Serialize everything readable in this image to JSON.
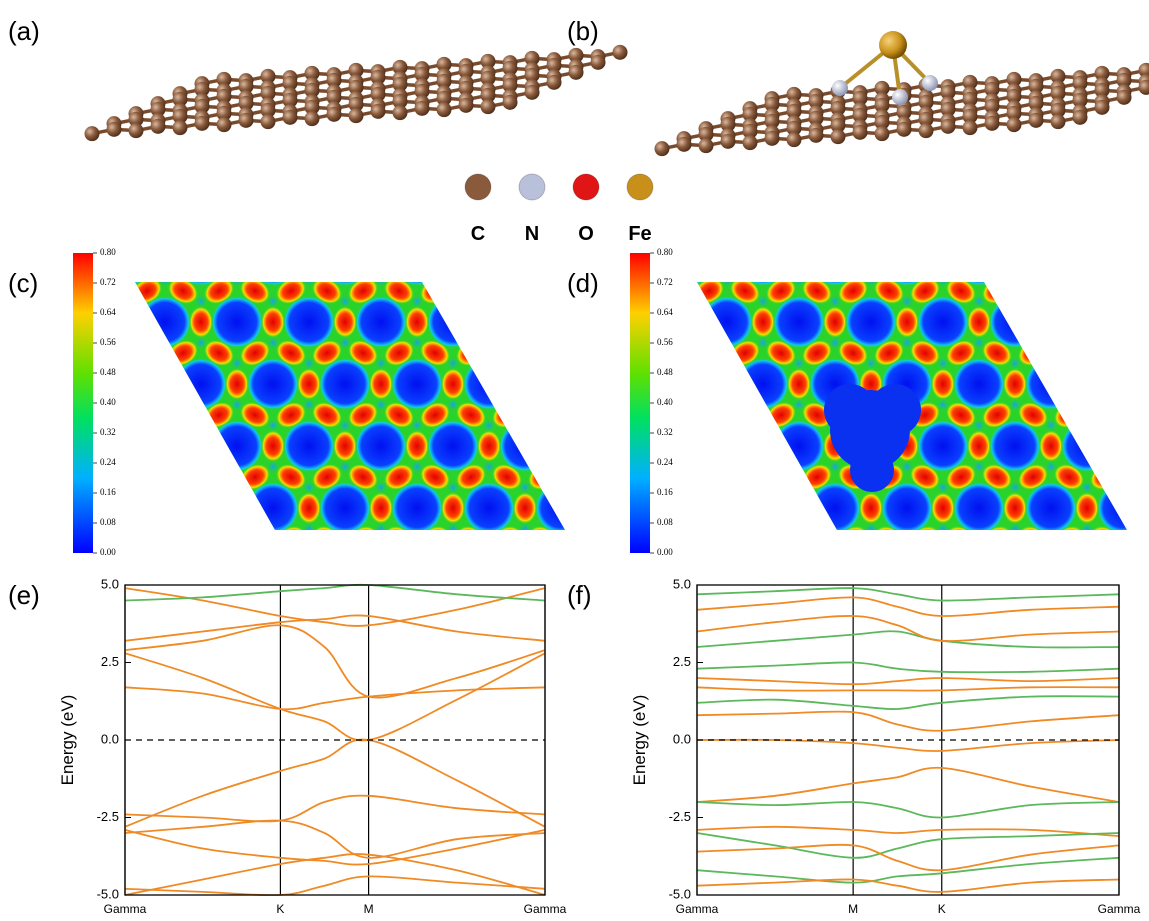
{
  "panel_labels": [
    "(a)",
    "(b)",
    "(c)",
    "(d)",
    "(e)",
    "(f)"
  ],
  "legend": {
    "items": [
      {
        "label": "C",
        "color": "#8a5a3c"
      },
      {
        "label": "N",
        "color": "#b9c0d9"
      },
      {
        "label": "O",
        "color": "#e01515"
      },
      {
        "label": "Fe",
        "color": "#c8901a"
      }
    ]
  },
  "colorbars": [
    {
      "lim": [
        0,
        0.8
      ],
      "ticks": [
        {
          "value": 0,
          "label": "0.00"
        },
        0.08,
        0.16,
        0.24,
        0.32,
        {
          "value": 0.4,
          "label": "0.40"
        },
        0.48,
        0.56,
        0.64,
        0.72,
        {
          "value": 0.8,
          "label": "0.80"
        }
      ]
    },
    {
      "lim": [
        0,
        0.8
      ],
      "ticks": [
        {
          "value": 0,
          "label": "0.00"
        },
        0.08,
        0.16,
        0.24,
        0.32,
        {
          "value": 0.4,
          "label": "0.40"
        },
        0.48,
        0.56,
        0.64,
        0.72,
        {
          "value": 0.8,
          "label": "0.80"
        }
      ]
    }
  ],
  "chart_data": [
    {
      "type": "line",
      "ylabel": "Energy (eV)",
      "xlim": [
        0,
        1
      ],
      "xticks": [
        {
          "value": 0,
          "label": "Gamma"
        },
        {
          "value": 0.37,
          "label": "K"
        },
        {
          "value": 0.58,
          "label": "M"
        },
        {
          "value": 1,
          "label": "Gamma"
        }
      ],
      "ylim": [
        -5,
        5
      ],
      "yticks": [
        {
          "value": -5,
          "label": "-5.0"
        },
        -2.5,
        {
          "value": 0,
          "label": "0.0"
        },
        2.5,
        {
          "value": 5,
          "label": "5.0"
        }
      ],
      "hline": 0,
      "xgrid": true,
      "x": [
        0,
        0.185,
        0.37,
        0.475,
        0.58,
        0.79,
        1
      ],
      "series": [
        {
          "color": "#f08a24",
          "values": [
            -2.8,
            -1.8,
            -1.0,
            -0.6,
            0,
            -1.3,
            -2.8
          ]
        },
        {
          "color": "#f08a24",
          "values": [
            2.8,
            2.0,
            1.0,
            0.6,
            0,
            1.3,
            2.8
          ]
        },
        {
          "color": "#f08a24",
          "values": [
            1.7,
            1.5,
            1.0,
            1.2,
            1.4,
            1.6,
            1.7
          ]
        },
        {
          "color": "#f08a24",
          "values": [
            -2.4,
            -2.5,
            -2.6,
            -2.0,
            -1.8,
            -2.2,
            -2.4
          ]
        },
        {
          "color": "#f08a24",
          "values": [
            -2.9,
            -3.5,
            -3.8,
            -3.9,
            -4.0,
            -3.5,
            -2.9
          ]
        },
        {
          "color": "#f08a24",
          "values": [
            -5.0,
            -4.5,
            -4.0,
            -3.8,
            -3.7,
            -4.2,
            -5.0
          ]
        },
        {
          "color": "#f08a24",
          "values": [
            -3.0,
            -2.8,
            -2.6,
            -3.0,
            -3.8,
            -3.2,
            -3.0
          ]
        },
        {
          "color": "#f08a24",
          "values": [
            3.2,
            3.5,
            3.8,
            3.9,
            4.0,
            3.5,
            3.2
          ]
        },
        {
          "color": "#f08a24",
          "values": [
            4.9,
            4.5,
            4.0,
            3.8,
            3.7,
            4.2,
            4.9
          ]
        },
        {
          "color": "#f08a24",
          "values": [
            2.9,
            3.2,
            3.7,
            3.0,
            1.4,
            2.0,
            2.9
          ]
        },
        {
          "color": "#5cb85c",
          "values": [
            4.5,
            4.6,
            4.8,
            4.9,
            5.0,
            4.7,
            4.5
          ]
        },
        {
          "color": "#f08a24",
          "values": [
            -4.8,
            -4.9,
            -5.0,
            -4.7,
            -4.4,
            -4.6,
            -4.8
          ]
        }
      ]
    },
    {
      "type": "line",
      "ylabel": "Energy (eV)",
      "xlim": [
        0,
        1
      ],
      "xticks": [
        {
          "value": 0,
          "label": "Gamma"
        },
        {
          "value": 0.37,
          "label": "M"
        },
        {
          "value": 0.58,
          "label": "K"
        },
        {
          "value": 1,
          "label": "Gamma"
        }
      ],
      "ylim": [
        -5,
        5
      ],
      "yticks": [
        {
          "value": -5,
          "label": "-5.0"
        },
        -2.5,
        {
          "value": 0,
          "label": "0.0"
        },
        2.5,
        {
          "value": 5,
          "label": "5.0"
        }
      ],
      "hline": 0,
      "xgrid": true,
      "x": [
        0,
        0.185,
        0.37,
        0.475,
        0.58,
        0.79,
        1
      ],
      "series": [
        {
          "color": "#f08a24",
          "values": [
            0.0,
            0.0,
            -0.1,
            -0.25,
            -0.35,
            -0.1,
            0.0
          ]
        },
        {
          "color": "#f08a24",
          "values": [
            0.8,
            0.85,
            0.9,
            0.5,
            0.3,
            0.6,
            0.8
          ]
        },
        {
          "color": "#5cb85c",
          "values": [
            1.2,
            1.3,
            1.1,
            1.0,
            1.2,
            1.4,
            1.4
          ]
        },
        {
          "color": "#f08a24",
          "values": [
            1.7,
            1.6,
            1.6,
            1.6,
            1.6,
            1.7,
            1.7
          ]
        },
        {
          "color": "#f08a24",
          "values": [
            2.0,
            1.9,
            1.8,
            1.9,
            2.0,
            1.9,
            2.0
          ]
        },
        {
          "color": "#5cb85c",
          "values": [
            2.3,
            2.4,
            2.5,
            2.3,
            2.2,
            2.2,
            2.3
          ]
        },
        {
          "color": "#5cb85c",
          "values": [
            3.0,
            3.2,
            3.4,
            3.5,
            3.2,
            3.0,
            3.0
          ]
        },
        {
          "color": "#f08a24",
          "values": [
            3.5,
            3.8,
            4.0,
            3.7,
            3.2,
            3.4,
            3.5
          ]
        },
        {
          "color": "#f08a24",
          "values": [
            4.2,
            4.4,
            4.6,
            4.3,
            4.0,
            4.2,
            4.3
          ]
        },
        {
          "color": "#5cb85c",
          "values": [
            4.7,
            4.8,
            4.9,
            4.7,
            4.5,
            4.6,
            4.7
          ]
        },
        {
          "color": "#f08a24",
          "values": [
            -2.0,
            -1.8,
            -1.4,
            -1.2,
            -0.9,
            -1.5,
            -2.0
          ]
        },
        {
          "color": "#5cb85c",
          "values": [
            -2.0,
            -2.1,
            -2.0,
            -2.2,
            -2.5,
            -2.1,
            -2.0
          ]
        },
        {
          "color": "#f08a24",
          "values": [
            -2.9,
            -2.8,
            -2.9,
            -3.0,
            -2.9,
            -2.9,
            -3.1
          ]
        },
        {
          "color": "#5cb85c",
          "values": [
            -3.0,
            -3.4,
            -3.8,
            -3.5,
            -3.2,
            -3.1,
            -3.0
          ]
        },
        {
          "color": "#f08a24",
          "values": [
            -3.6,
            -3.5,
            -3.4,
            -3.9,
            -4.2,
            -3.7,
            -3.4
          ]
        },
        {
          "color": "#5cb85c",
          "values": [
            -4.2,
            -4.4,
            -4.6,
            -4.4,
            -4.3,
            -4.0,
            -3.8
          ]
        },
        {
          "color": "#f08a24",
          "values": [
            -4.7,
            -4.6,
            -4.5,
            -4.7,
            -4.9,
            -4.6,
            -4.5
          ]
        }
      ]
    }
  ]
}
